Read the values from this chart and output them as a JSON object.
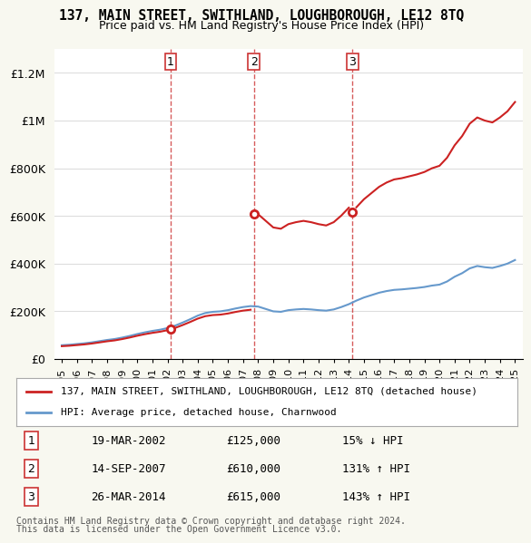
{
  "title": "137, MAIN STREET, SWITHLAND, LOUGHBOROUGH, LE12 8TQ",
  "subtitle": "Price paid vs. HM Land Registry's House Price Index (HPI)",
  "legend_line1": "137, MAIN STREET, SWITHLAND, LOUGHBOROUGH, LE12 8TQ (detached house)",
  "legend_line2": "HPI: Average price, detached house, Charnwood",
  "footer1": "Contains HM Land Registry data © Crown copyright and database right 2024.",
  "footer2": "This data is licensed under the Open Government Licence v3.0.",
  "sales": [
    {
      "num": 1,
      "date": "19-MAR-2002",
      "price": 125000,
      "year": 2002.21,
      "hpi_pct": "15% ↓ HPI"
    },
    {
      "num": 2,
      "date": "14-SEP-2007",
      "price": 610000,
      "year": 2007.71,
      "hpi_pct": "131% ↑ HPI"
    },
    {
      "num": 3,
      "date": "26-MAR-2014",
      "price": 615000,
      "year": 2014.23,
      "hpi_pct": "143% ↑ HPI"
    }
  ],
  "hpi_color": "#6699cc",
  "price_color": "#cc2222",
  "marker_color": "#cc2222",
  "dashed_color": "#cc3333",
  "ylim": [
    0,
    1300000
  ],
  "yticks": [
    0,
    200000,
    400000,
    600000,
    800000,
    1000000,
    1200000
  ],
  "ytick_labels": [
    "£0",
    "£200K",
    "£400K",
    "£600K",
    "£800K",
    "£1M",
    "£1.2M"
  ],
  "bg_color": "#f8f8f0",
  "plot_bg": "#ffffff",
  "grid_color": "#dddddd"
}
